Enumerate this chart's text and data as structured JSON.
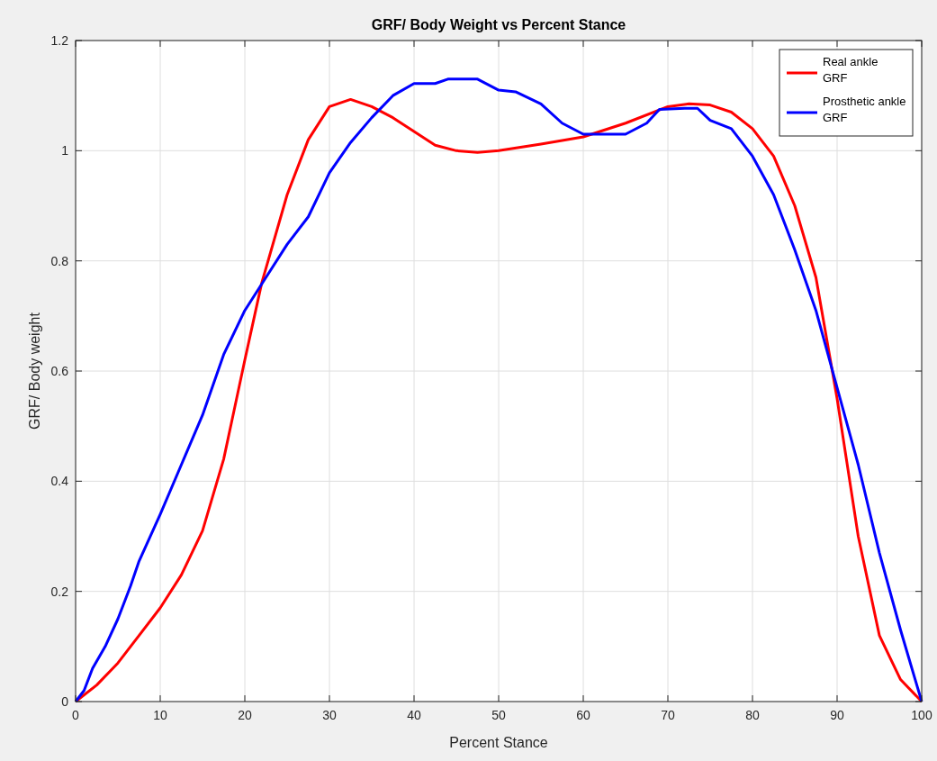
{
  "chart_data": {
    "type": "line",
    "title": "GRF/ Body Weight vs Percent Stance",
    "xlabel": "Percent Stance",
    "ylabel": "GRF/ Body weight",
    "xlim": [
      0,
      100
    ],
    "xticks": [
      0,
      10,
      20,
      30,
      40,
      50,
      60,
      70,
      80,
      90,
      100
    ],
    "ylim": [
      0,
      1.2
    ],
    "yticks": [
      0,
      0.2,
      0.4,
      0.6,
      0.8,
      1,
      1.2
    ],
    "grid": true,
    "legend": "top right",
    "series": [
      {
        "name": "Real ankle GRF",
        "color": "#ff0000",
        "x": [
          0,
          2.5,
          5,
          7.5,
          10,
          12.5,
          15,
          17.5,
          20,
          22,
          25,
          27.5,
          30,
          32.5,
          35,
          37.5,
          40,
          42.5,
          45,
          47.5,
          50,
          55,
          60,
          65,
          70,
          72.5,
          75,
          77.5,
          80,
          82.5,
          85,
          87.5,
          90,
          92.5,
          95,
          97.5,
          100
        ],
        "values": [
          0,
          0.03,
          0.07,
          0.12,
          0.17,
          0.23,
          0.31,
          0.44,
          0.62,
          0.76,
          0.92,
          1.02,
          1.08,
          1.093,
          1.08,
          1.06,
          1.035,
          1.01,
          1,
          0.997,
          1,
          1.012,
          1.025,
          1.05,
          1.08,
          1.085,
          1.083,
          1.07,
          1.04,
          0.99,
          0.9,
          0.77,
          0.55,
          0.3,
          0.12,
          0.04,
          0
        ]
      },
      {
        "name": "Prosthetic ankle GRF",
        "color": "#0000ff",
        "x": [
          0,
          1,
          2,
          3.5,
          5,
          6.5,
          7.5,
          10,
          12.5,
          15,
          17.5,
          20,
          22.5,
          25,
          27.5,
          30,
          32.5,
          35,
          37.5,
          40,
          42.5,
          44,
          47.5,
          50,
          52,
          55,
          57.5,
          60,
          62.5,
          65,
          67.5,
          69,
          72,
          73.5,
          75,
          77.5,
          80,
          82.5,
          85,
          87.5,
          90,
          92.5,
          95,
          97.5,
          100
        ],
        "values": [
          0,
          0.02,
          0.06,
          0.1,
          0.15,
          0.21,
          0.255,
          0.34,
          0.43,
          0.52,
          0.63,
          0.71,
          0.77,
          0.83,
          0.88,
          0.96,
          1.015,
          1.06,
          1.1,
          1.122,
          1.122,
          1.13,
          1.13,
          1.11,
          1.107,
          1.085,
          1.05,
          1.03,
          1.03,
          1.03,
          1.05,
          1.075,
          1.077,
          1.077,
          1.055,
          1.04,
          0.99,
          0.92,
          0.82,
          0.71,
          0.57,
          0.43,
          0.27,
          0.13,
          0
        ]
      }
    ]
  }
}
